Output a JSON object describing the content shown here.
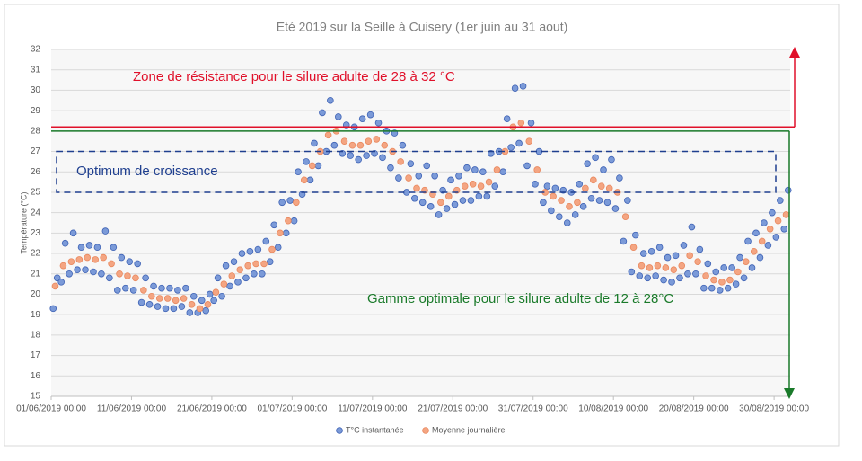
{
  "chart_data": {
    "type": "scatter",
    "title": "Eté 2019 sur la Seille à Cuisery (1er juin au 31 aout)",
    "y_label": "Température (°C)",
    "xlim": [
      "2019-06-01 00:00",
      "2019-09-01 00:00"
    ],
    "xticks": [
      {
        "value": "2019-06-01 00:00",
        "label": "01/06/2019 00:00"
      },
      {
        "value": "2019-06-11 00:00",
        "label": "11/06/2019 00:00"
      },
      {
        "value": "2019-06-21 00:00",
        "label": "21/06/2019 00:00"
      },
      {
        "value": "2019-07-01 00:00",
        "label": "01/07/2019 00:00"
      },
      {
        "value": "2019-07-11 00:00",
        "label": "11/07/2019 00:00"
      },
      {
        "value": "2019-07-21 00:00",
        "label": "21/07/2019 00:00"
      },
      {
        "value": "2019-07-31 00:00",
        "label": "31/07/2019 00:00"
      },
      {
        "value": "2019-08-10 00:00",
        "label": "10/08/2019 00:00"
      },
      {
        "value": "2019-08-20 00:00",
        "label": "20/08/2019 00:00"
      },
      {
        "value": "2019-08-30 00:00",
        "label": "30/08/2019 00:00"
      }
    ],
    "ylim": [
      15,
      32
    ],
    "yticks": [
      15,
      16,
      17,
      18,
      19,
      20,
      21,
      22,
      23,
      24,
      25,
      26,
      27,
      28,
      29,
      30,
      31,
      32
    ],
    "grid": true,
    "legend": "bottom",
    "annotations": {
      "resistance": {
        "text": "Zone de résistance pour le silure adulte de 28 à 32 °C",
        "from": 28.2,
        "to": 32,
        "color": "#e0102a"
      },
      "optimum": {
        "text": "Optimum de croissance",
        "from": 25,
        "to": 27,
        "color": "#1f3f8f"
      },
      "optimal_range": {
        "text": "Gamme optimale  pour le silure adulte de 12  à 28°C",
        "from": 28,
        "to": 15,
        "color": "#1a7a2a"
      }
    },
    "series": [
      {
        "name": "T°C instantanée",
        "color": "#7b9ad8",
        "x": [
          "2019-06-01 06:00",
          "2019-06-01 18:00",
          "2019-06-02 06:00",
          "2019-06-02 18:00",
          "2019-06-03 06:00",
          "2019-06-03 18:00",
          "2019-06-04 06:00",
          "2019-06-04 18:00",
          "2019-06-05 06:00",
          "2019-06-05 18:00",
          "2019-06-06 06:00",
          "2019-06-06 18:00",
          "2019-06-07 06:00",
          "2019-06-07 18:00",
          "2019-06-08 06:00",
          "2019-06-08 18:00",
          "2019-06-09 06:00",
          "2019-06-09 18:00",
          "2019-06-10 06:00",
          "2019-06-10 18:00",
          "2019-06-11 06:00",
          "2019-06-11 18:00",
          "2019-06-12 06:00",
          "2019-06-12 18:00",
          "2019-06-13 06:00",
          "2019-06-13 18:00",
          "2019-06-14 06:00",
          "2019-06-14 18:00",
          "2019-06-15 06:00",
          "2019-06-15 18:00",
          "2019-06-16 06:00",
          "2019-06-16 18:00",
          "2019-06-17 06:00",
          "2019-06-17 18:00",
          "2019-06-18 06:00",
          "2019-06-18 18:00",
          "2019-06-19 06:00",
          "2019-06-19 18:00",
          "2019-06-20 06:00",
          "2019-06-20 18:00",
          "2019-06-21 06:00",
          "2019-06-21 18:00",
          "2019-06-22 06:00",
          "2019-06-22 18:00",
          "2019-06-23 06:00",
          "2019-06-23 18:00",
          "2019-06-24 06:00",
          "2019-06-24 18:00",
          "2019-06-25 06:00",
          "2019-06-25 18:00",
          "2019-06-26 06:00",
          "2019-06-26 18:00",
          "2019-06-27 06:00",
          "2019-06-27 18:00",
          "2019-06-28 06:00",
          "2019-06-28 18:00",
          "2019-06-29 06:00",
          "2019-06-29 18:00",
          "2019-06-30 06:00",
          "2019-06-30 18:00",
          "2019-07-01 06:00",
          "2019-07-01 18:00",
          "2019-07-02 06:00",
          "2019-07-02 18:00",
          "2019-07-03 06:00",
          "2019-07-03 18:00",
          "2019-07-04 06:00",
          "2019-07-04 18:00",
          "2019-07-05 06:00",
          "2019-07-05 18:00",
          "2019-07-06 06:00",
          "2019-07-06 18:00",
          "2019-07-07 06:00",
          "2019-07-07 18:00",
          "2019-07-08 06:00",
          "2019-07-08 18:00",
          "2019-07-09 06:00",
          "2019-07-09 18:00",
          "2019-07-10 06:00",
          "2019-07-10 18:00",
          "2019-07-11 06:00",
          "2019-07-11 18:00",
          "2019-07-12 06:00",
          "2019-07-12 18:00",
          "2019-07-13 06:00",
          "2019-07-13 18:00",
          "2019-07-14 06:00",
          "2019-07-14 18:00",
          "2019-07-15 06:00",
          "2019-07-15 18:00",
          "2019-07-16 06:00",
          "2019-07-16 18:00",
          "2019-07-17 06:00",
          "2019-07-17 18:00",
          "2019-07-18 06:00",
          "2019-07-18 18:00",
          "2019-07-19 06:00",
          "2019-07-19 18:00",
          "2019-07-20 06:00",
          "2019-07-20 18:00",
          "2019-07-21 06:00",
          "2019-07-21 18:00",
          "2019-07-22 06:00",
          "2019-07-22 18:00",
          "2019-07-23 06:00",
          "2019-07-23 18:00",
          "2019-07-24 06:00",
          "2019-07-24 18:00",
          "2019-07-25 06:00",
          "2019-07-25 18:00",
          "2019-07-26 06:00",
          "2019-07-26 18:00",
          "2019-07-27 06:00",
          "2019-07-27 18:00",
          "2019-07-28 06:00",
          "2019-07-28 18:00",
          "2019-07-29 06:00",
          "2019-07-29 18:00",
          "2019-07-30 06:00",
          "2019-07-30 18:00",
          "2019-07-31 06:00",
          "2019-07-31 18:00",
          "2019-08-01 06:00",
          "2019-08-01 18:00",
          "2019-08-02 06:00",
          "2019-08-02 18:00",
          "2019-08-03 06:00",
          "2019-08-03 18:00",
          "2019-08-04 06:00",
          "2019-08-04 18:00",
          "2019-08-05 06:00",
          "2019-08-05 18:00",
          "2019-08-06 06:00",
          "2019-08-06 18:00",
          "2019-08-07 06:00",
          "2019-08-07 18:00",
          "2019-08-08 06:00",
          "2019-08-08 18:00",
          "2019-08-09 06:00",
          "2019-08-09 18:00",
          "2019-08-10 06:00",
          "2019-08-10 18:00",
          "2019-08-11 06:00",
          "2019-08-11 18:00",
          "2019-08-12 06:00",
          "2019-08-12 18:00",
          "2019-08-13 06:00",
          "2019-08-13 18:00",
          "2019-08-14 06:00",
          "2019-08-14 18:00",
          "2019-08-15 06:00",
          "2019-08-15 18:00",
          "2019-08-16 06:00",
          "2019-08-16 18:00",
          "2019-08-17 06:00",
          "2019-08-17 18:00",
          "2019-08-18 06:00",
          "2019-08-18 18:00",
          "2019-08-19 06:00",
          "2019-08-19 18:00",
          "2019-08-20 06:00",
          "2019-08-20 18:00",
          "2019-08-21 06:00",
          "2019-08-21 18:00",
          "2019-08-22 06:00",
          "2019-08-22 18:00",
          "2019-08-23 06:00",
          "2019-08-23 18:00",
          "2019-08-24 06:00",
          "2019-08-24 18:00",
          "2019-08-25 06:00",
          "2019-08-25 18:00",
          "2019-08-26 06:00",
          "2019-08-26 18:00",
          "2019-08-27 06:00",
          "2019-08-27 18:00",
          "2019-08-28 06:00",
          "2019-08-28 18:00",
          "2019-08-29 06:00",
          "2019-08-29 18:00",
          "2019-08-30 06:00",
          "2019-08-30 18:00",
          "2019-08-31 06:00",
          "2019-08-31 18:00"
        ],
        "values": [
          19.3,
          20.8,
          20.6,
          22.5,
          21.0,
          23.0,
          21.2,
          22.3,
          21.2,
          22.4,
          21.1,
          22.3,
          21.0,
          23.1,
          20.8,
          22.3,
          20.2,
          21.8,
          20.3,
          21.6,
          20.2,
          21.5,
          19.6,
          20.8,
          19.5,
          20.4,
          19.4,
          20.3,
          19.3,
          20.3,
          19.3,
          20.2,
          19.4,
          20.3,
          19.1,
          19.9,
          19.1,
          19.7,
          19.2,
          20.0,
          19.7,
          20.8,
          19.9,
          21.4,
          20.4,
          21.6,
          20.6,
          22.0,
          20.8,
          22.1,
          21.0,
          22.2,
          21.0,
          22.6,
          21.6,
          23.4,
          22.3,
          24.5,
          23.0,
          24.6,
          23.6,
          26.0,
          24.9,
          26.5,
          25.6,
          27.4,
          26.3,
          28.9,
          27.0,
          29.5,
          27.3,
          28.7,
          26.9,
          28.3,
          26.8,
          28.2,
          26.6,
          28.6,
          26.8,
          28.8,
          26.9,
          28.4,
          26.7,
          28.0,
          26.2,
          27.9,
          25.7,
          27.3,
          25.0,
          26.4,
          24.7,
          25.8,
          24.5,
          26.3,
          24.3,
          25.8,
          23.9,
          25.1,
          24.2,
          25.6,
          24.4,
          25.8,
          24.6,
          26.2,
          24.6,
          26.1,
          24.8,
          26.0,
          24.8,
          26.9,
          25.3,
          27.0,
          26.0,
          28.6,
          27.2,
          30.1,
          27.4,
          30.2,
          26.3,
          28.4,
          25.4,
          27.0,
          24.5,
          25.3,
          24.1,
          25.2,
          23.8,
          25.1,
          23.5,
          25.0,
          23.9,
          25.4,
          24.3,
          26.4,
          24.7,
          26.7,
          24.6,
          26.1,
          24.5,
          26.6,
          24.2,
          25.7,
          22.6,
          24.6,
          21.1,
          22.9,
          20.9,
          22.0,
          20.8,
          22.1,
          20.9,
          22.3,
          20.7,
          21.8,
          20.6,
          21.9,
          20.8,
          22.4,
          21.0,
          23.3,
          21.0,
          22.2,
          20.3,
          21.5,
          20.3,
          21.1,
          20.2,
          21.3,
          20.3,
          21.3,
          20.5,
          21.8,
          20.8,
          22.6,
          21.3,
          23.0,
          21.8,
          23.5,
          22.4,
          24.0,
          22.8,
          24.6,
          23.2,
          25.1
        ]
      },
      {
        "name": "Moyenne journalière",
        "color": "#f4a582",
        "x": [
          "2019-06-01 12:00",
          "2019-06-02 12:00",
          "2019-06-03 12:00",
          "2019-06-04 12:00",
          "2019-06-05 12:00",
          "2019-06-06 12:00",
          "2019-06-07 12:00",
          "2019-06-08 12:00",
          "2019-06-09 12:00",
          "2019-06-10 12:00",
          "2019-06-11 12:00",
          "2019-06-12 12:00",
          "2019-06-13 12:00",
          "2019-06-14 12:00",
          "2019-06-15 12:00",
          "2019-06-16 12:00",
          "2019-06-17 12:00",
          "2019-06-18 12:00",
          "2019-06-19 12:00",
          "2019-06-20 12:00",
          "2019-06-21 12:00",
          "2019-06-22 12:00",
          "2019-06-23 12:00",
          "2019-06-24 12:00",
          "2019-06-25 12:00",
          "2019-06-26 12:00",
          "2019-06-27 12:00",
          "2019-06-28 12:00",
          "2019-06-29 12:00",
          "2019-06-30 12:00",
          "2019-07-01 12:00",
          "2019-07-02 12:00",
          "2019-07-03 12:00",
          "2019-07-04 12:00",
          "2019-07-05 12:00",
          "2019-07-06 12:00",
          "2019-07-07 12:00",
          "2019-07-08 12:00",
          "2019-07-09 12:00",
          "2019-07-10 12:00",
          "2019-07-11 12:00",
          "2019-07-12 12:00",
          "2019-07-13 12:00",
          "2019-07-14 12:00",
          "2019-07-15 12:00",
          "2019-07-16 12:00",
          "2019-07-17 12:00",
          "2019-07-18 12:00",
          "2019-07-19 12:00",
          "2019-07-20 12:00",
          "2019-07-21 12:00",
          "2019-07-22 12:00",
          "2019-07-23 12:00",
          "2019-07-24 12:00",
          "2019-07-25 12:00",
          "2019-07-26 12:00",
          "2019-07-27 12:00",
          "2019-07-28 12:00",
          "2019-07-29 12:00",
          "2019-07-30 12:00",
          "2019-07-31 12:00",
          "2019-08-01 12:00",
          "2019-08-02 12:00",
          "2019-08-03 12:00",
          "2019-08-04 12:00",
          "2019-08-05 12:00",
          "2019-08-06 12:00",
          "2019-08-07 12:00",
          "2019-08-08 12:00",
          "2019-08-09 12:00",
          "2019-08-10 12:00",
          "2019-08-11 12:00",
          "2019-08-12 12:00",
          "2019-08-13 12:00",
          "2019-08-14 12:00",
          "2019-08-15 12:00",
          "2019-08-16 12:00",
          "2019-08-17 12:00",
          "2019-08-18 12:00",
          "2019-08-19 12:00",
          "2019-08-20 12:00",
          "2019-08-21 12:00",
          "2019-08-22 12:00",
          "2019-08-23 12:00",
          "2019-08-24 12:00",
          "2019-08-25 12:00",
          "2019-08-26 12:00",
          "2019-08-27 12:00",
          "2019-08-28 12:00",
          "2019-08-29 12:00",
          "2019-08-30 12:00",
          "2019-08-31 12:00"
        ],
        "values": [
          20.4,
          21.4,
          21.6,
          21.7,
          21.8,
          21.7,
          21.8,
          21.5,
          21.0,
          20.9,
          20.8,
          20.2,
          19.9,
          19.8,
          19.8,
          19.7,
          19.8,
          19.5,
          19.3,
          19.5,
          20.1,
          20.5,
          20.9,
          21.2,
          21.4,
          21.5,
          21.5,
          22.2,
          23.0,
          23.6,
          24.5,
          25.6,
          26.3,
          27.0,
          27.8,
          28.0,
          27.5,
          27.3,
          27.3,
          27.5,
          27.6,
          27.3,
          27.0,
          26.5,
          25.7,
          25.2,
          25.1,
          24.9,
          24.5,
          24.8,
          25.1,
          25.3,
          25.4,
          25.3,
          25.5,
          26.1,
          27.0,
          28.2,
          28.4,
          27.5,
          26.1,
          25.0,
          24.8,
          24.6,
          24.3,
          24.5,
          25.2,
          25.6,
          25.3,
          25.2,
          25.0,
          23.8,
          22.3,
          21.4,
          21.3,
          21.4,
          21.3,
          21.2,
          21.4,
          21.9,
          21.6,
          20.9,
          20.7,
          20.6,
          20.7,
          21.1,
          21.6,
          22.1,
          22.6,
          23.2,
          23.6,
          23.9
        ]
      }
    ]
  }
}
